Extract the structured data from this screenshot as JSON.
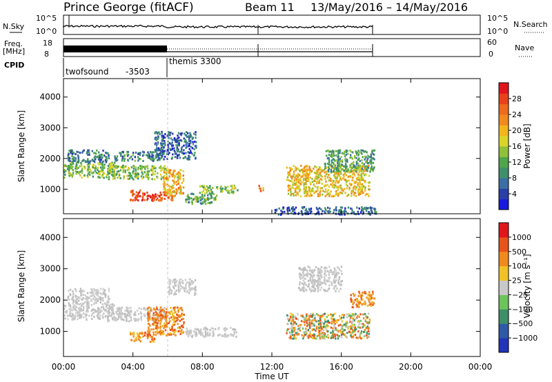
{
  "header": {
    "title": "Prince George (fitACF)",
    "beam": "Beam 11",
    "date_range": "13/May/2016 – 14/May/2016"
  },
  "panels": {
    "nsky": {
      "label": "N.Sky",
      "ytick_top": "10^5",
      "ytick_bottom": "10^0",
      "right_label": "N.Search",
      "right_tick_top": "10^5",
      "right_tick_bottom": "10^0"
    },
    "freq": {
      "label": "Freq.",
      "unit": "[MHz]",
      "ytick_top": "18",
      "ytick_bottom": "8",
      "right_label": "Nave",
      "right_tick_top": "60",
      "right_tick_bottom": "0"
    },
    "cpid": {
      "label": "CPID",
      "segments": [
        {
          "name": "twofsound",
          "id": "-3503",
          "start_hr": 0,
          "end_hr": 6
        },
        {
          "name": "themis",
          "id": "3300",
          "start_hr": 6,
          "end_hr": 18
        }
      ]
    }
  },
  "chart_data": [
    {
      "type": "heatmap",
      "name": "Power",
      "ylabel": "Slant Range [km]",
      "xlabel": "Time UT",
      "xticks": [
        "00:00",
        "04:00",
        "08:00",
        "12:00",
        "16:00",
        "20:00",
        "00:00"
      ],
      "x_hours": [
        0,
        4,
        8,
        12,
        16,
        20,
        24
      ],
      "yticks": [
        "1000",
        "2000",
        "3000",
        "4000"
      ],
      "y_values": [
        1000,
        2000,
        3000,
        4000
      ],
      "ylim": [
        200,
        4600
      ],
      "xlim_hours": [
        0,
        24
      ],
      "colorbar": {
        "label": "Power [dB]",
        "ticks": [
          "4",
          "8",
          "12",
          "16",
          "20",
          "24",
          "28"
        ],
        "tick_values": [
          4,
          8,
          12,
          16,
          20,
          24,
          28
        ],
        "range": [
          0,
          32
        ],
        "colors": [
          "#1a1adf",
          "#2a3ea8",
          "#3b6fa3",
          "#3f8f6b",
          "#4fa64a",
          "#8fc03a",
          "#d9d32a",
          "#f2b51c",
          "#f08a1e",
          "#ee6a1d",
          "#e8421c",
          "#e0151c"
        ]
      },
      "regions": [
        {
          "t0": 0.0,
          "t1": 2.9,
          "r0": 1400,
          "r1": 1900,
          "level": 14
        },
        {
          "t0": 0.2,
          "t1": 2.6,
          "r0": 1900,
          "r1": 2300,
          "level": 8
        },
        {
          "t0": 2.5,
          "t1": 5.8,
          "r0": 1350,
          "r1": 1800,
          "level": 14
        },
        {
          "t0": 2.9,
          "t1": 5.6,
          "r0": 1950,
          "r1": 2250,
          "level": 9
        },
        {
          "t0": 3.8,
          "t1": 6.3,
          "r0": 650,
          "r1": 1000,
          "level": 27
        },
        {
          "t0": 5.7,
          "t1": 6.9,
          "r0": 800,
          "r1": 1700,
          "level": 20
        },
        {
          "t0": 5.2,
          "t1": 7.6,
          "r0": 2000,
          "r1": 2900,
          "level": 6
        },
        {
          "t0": 7.8,
          "t1": 10.0,
          "r0": 900,
          "r1": 1150,
          "level": 14
        },
        {
          "t0": 7.0,
          "t1": 8.9,
          "r0": 550,
          "r1": 900,
          "level": 12
        },
        {
          "t0": 11.2,
          "t1": 11.5,
          "r0": 950,
          "r1": 1150,
          "level": 22
        },
        {
          "t0": 12.8,
          "t1": 17.6,
          "r0": 800,
          "r1": 1800,
          "level": 19
        },
        {
          "t0": 15.0,
          "t1": 17.9,
          "r0": 1600,
          "r1": 2300,
          "level": 11
        },
        {
          "t0": 12.0,
          "t1": 18.0,
          "r0": 200,
          "r1": 450,
          "level": 6
        }
      ]
    },
    {
      "type": "heatmap",
      "name": "Velocity",
      "ylabel": "Slant Range [km]",
      "xlabel": "Time UT",
      "xticks": [
        "00:00",
        "04:00",
        "08:00",
        "12:00",
        "16:00",
        "20:00",
        "00:00"
      ],
      "x_hours": [
        0,
        4,
        8,
        12,
        16,
        20,
        24
      ],
      "yticks": [
        "1000",
        "2000",
        "3000",
        "4000"
      ],
      "y_values": [
        1000,
        2000,
        3000,
        4000
      ],
      "ylim": [
        200,
        4600
      ],
      "xlim_hours": [
        0,
        24
      ],
      "colorbar": {
        "label": "Velocity [m s⁻¹]",
        "ticks": [
          "1000",
          "500",
          "100",
          "25",
          "−25",
          "−100",
          "−500",
          "−1000"
        ],
        "colors": [
          "#2233b8",
          "#2f5aa8",
          "#3e8e68",
          "#6cc35a",
          "#c8c8c8",
          "#f0c228",
          "#f08a1e",
          "#e8531c",
          "#e0151c"
        ]
      },
      "regions": [
        {
          "t0": 0.0,
          "t1": 2.9,
          "r0": 1400,
          "r1": 1900,
          "vel": "gray"
        },
        {
          "t0": 0.2,
          "t1": 2.6,
          "r0": 1900,
          "r1": 2400,
          "vel": "gray"
        },
        {
          "t0": 2.5,
          "t1": 5.8,
          "r0": 1350,
          "r1": 1800,
          "vel": "gray"
        },
        {
          "t0": 3.8,
          "t1": 5.2,
          "r0": 700,
          "r1": 1000,
          "vel": "orange"
        },
        {
          "t0": 4.8,
          "t1": 6.9,
          "r0": 900,
          "r1": 1800,
          "vel": "orange"
        },
        {
          "t0": 6.0,
          "t1": 7.6,
          "r0": 2200,
          "r1": 2700,
          "vel": "gray"
        },
        {
          "t0": 7.0,
          "t1": 10.0,
          "r0": 850,
          "r1": 1150,
          "vel": "gray"
        },
        {
          "t0": 12.8,
          "t1": 17.6,
          "r0": 800,
          "r1": 1600,
          "vel": "mixed"
        },
        {
          "t0": 16.5,
          "t1": 17.9,
          "r0": 1800,
          "r1": 2300,
          "vel": "orange"
        },
        {
          "t0": 13.5,
          "t1": 16.0,
          "r0": 2300,
          "r1": 3100,
          "vel": "gray"
        }
      ]
    }
  ],
  "colors": {
    "ground_scatter": "#bebebe",
    "axis": "#000000",
    "background": "#ffffff"
  }
}
